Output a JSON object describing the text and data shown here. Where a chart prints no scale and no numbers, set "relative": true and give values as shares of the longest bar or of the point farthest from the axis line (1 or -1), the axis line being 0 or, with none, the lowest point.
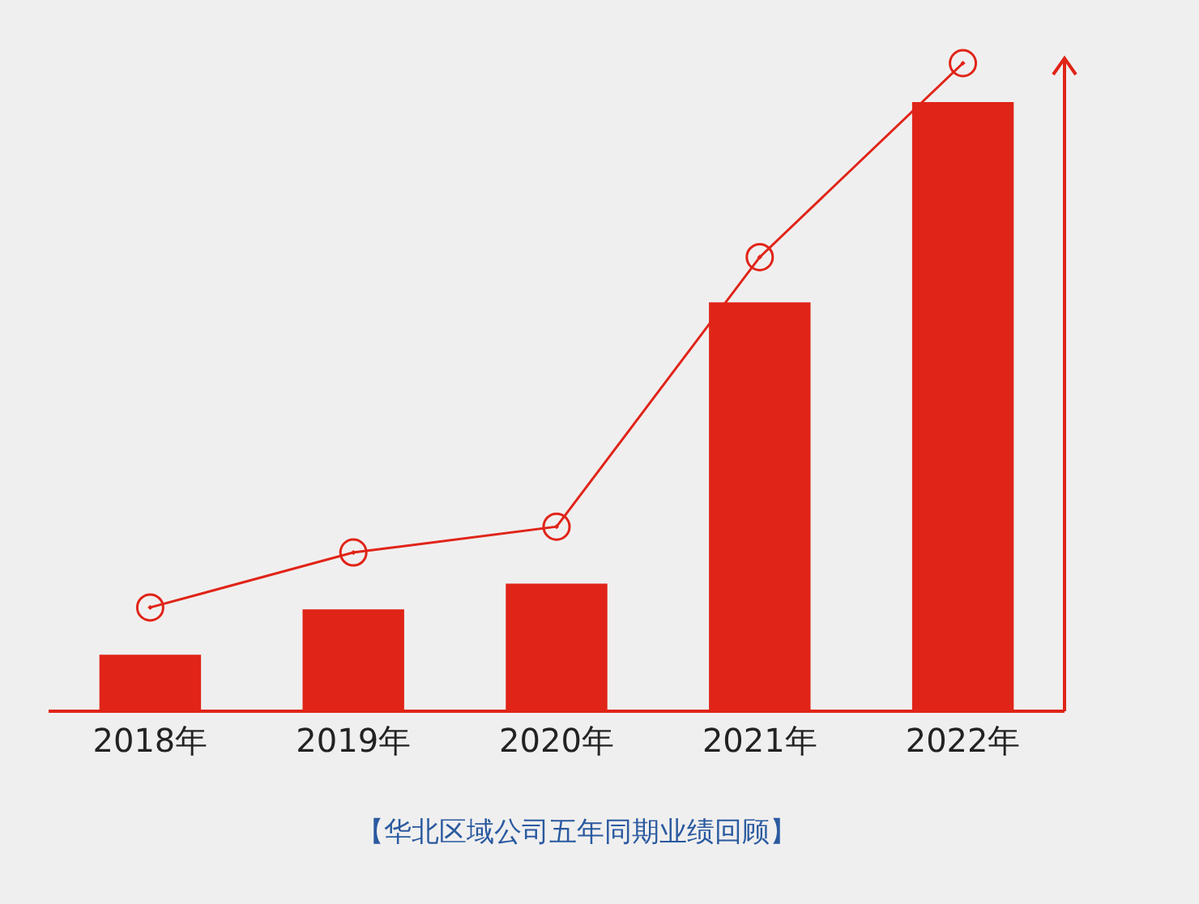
{
  "chart_data": {
    "type": "bar",
    "relative": true,
    "categories": [
      "2018年",
      "2019年",
      "2020年",
      "2021年",
      "2022年"
    ],
    "series": [
      {
        "color": "#e02418",
        "values": [
          0.085,
          0.155,
          0.195,
          0.63,
          0.94
        ]
      },
      {
        "type": "line",
        "color": "#e02418",
        "marker": "circle",
        "values": [
          0.158,
          0.243,
          0.283,
          0.7,
          1
        ]
      }
    ],
    "annotations": [
      "【华北区域公司五年同期业绩回顾】"
    ]
  }
}
